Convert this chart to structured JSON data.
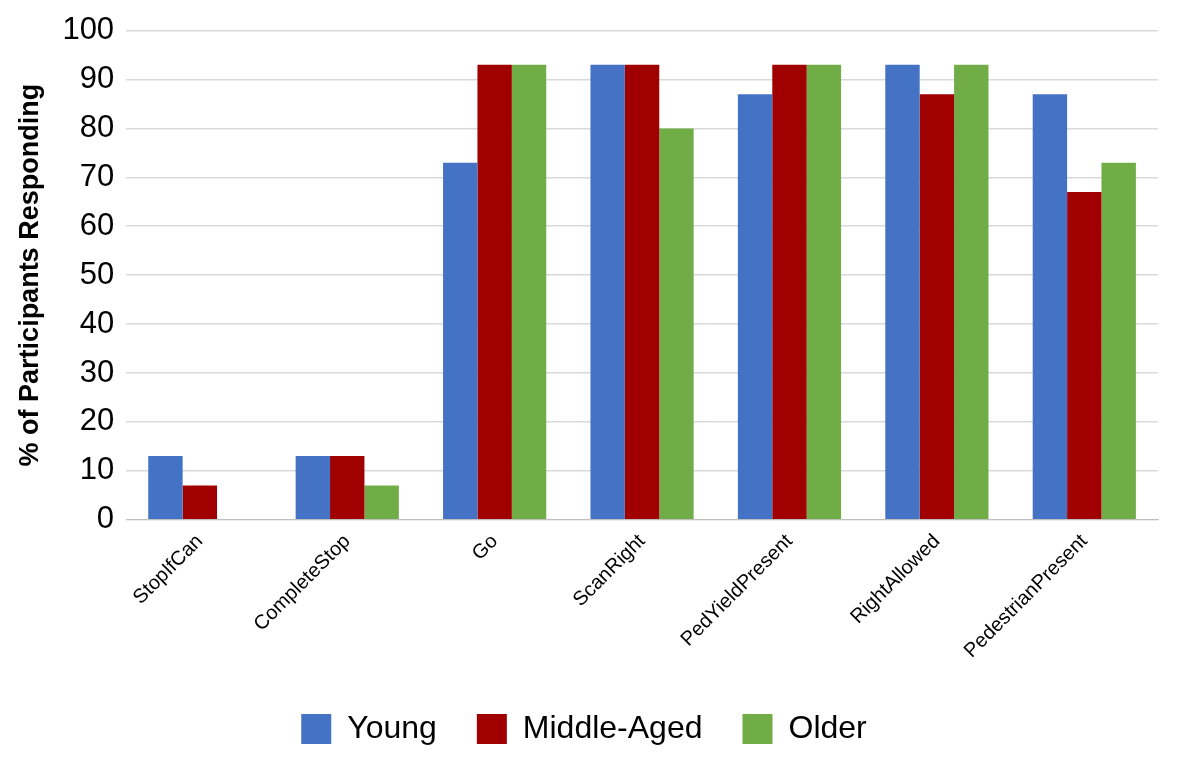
{
  "chart_data": {
    "type": "bar",
    "ylabel": "% of Participants Responding",
    "categories": [
      "StopIfCan",
      "CompleteStop",
      "Go",
      "ScanRight",
      "PedYieldPresent",
      "RightAllowed",
      "PedestrianPresent"
    ],
    "series": [
      {
        "name": "Young",
        "color": "#4472c4",
        "values": [
          13,
          13,
          73,
          93,
          87,
          93,
          87
        ]
      },
      {
        "name": "Middle-Aged",
        "color": "#a00000",
        "values": [
          7,
          13,
          93,
          93,
          93,
          87,
          67
        ]
      },
      {
        "name": "Older",
        "color": "#70ad47",
        "values": [
          0,
          7,
          93,
          80,
          93,
          93,
          73
        ]
      }
    ],
    "ylim": [
      0,
      100
    ],
    "yticks": [
      0,
      10,
      20,
      30,
      40,
      50,
      60,
      70,
      80,
      90,
      100
    ],
    "grid": "y",
    "legend": "bottom"
  }
}
